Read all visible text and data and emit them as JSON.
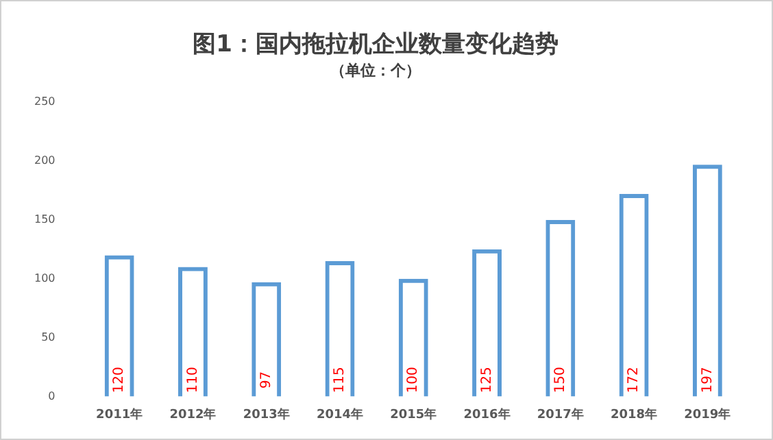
{
  "chart_data": {
    "type": "bar",
    "title": "图1：国内拖拉机企业数量变化趋势",
    "subtitle": "（单位：个）",
    "categories": [
      "2011年",
      "2012年",
      "2013年",
      "2014年",
      "2015年",
      "2016年",
      "2017年",
      "2018年",
      "2019年"
    ],
    "values": [
      120,
      110,
      97,
      115,
      100,
      125,
      150,
      172,
      197
    ],
    "color": "#5b9bd5",
    "ylim": [
      0,
      250
    ],
    "yticks": [
      0,
      50,
      100,
      150,
      200,
      250
    ],
    "grid": false,
    "legend": false,
    "data_labels": true
  }
}
